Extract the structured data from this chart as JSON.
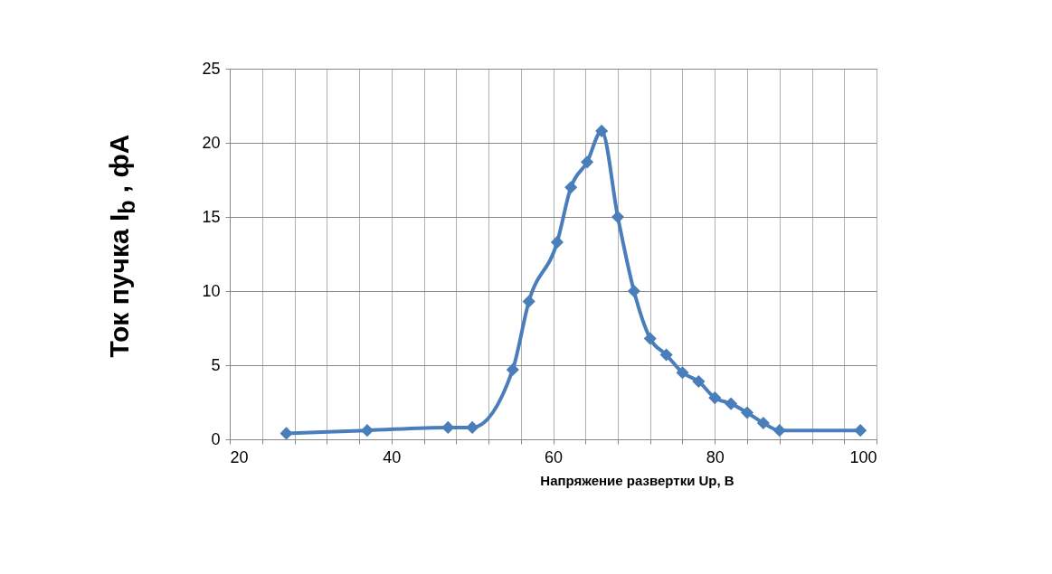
{
  "chart_data": {
    "type": "line",
    "xlabel": "Напряжение развертки  Up, В",
    "ylabel": "Ток пучка I$_{b}$  , фА",
    "x": [
      27,
      37,
      47,
      50,
      55,
      57,
      60.5,
      62.2,
      64.2,
      66,
      68,
      70,
      72,
      74,
      76,
      78,
      80,
      82,
      84,
      86,
      88,
      98
    ],
    "series": [
      {
        "color": "#4a7ebb",
        "values": [
          0.4,
          0.6,
          0.8,
          0.8,
          4.7,
          9.3,
          13.3,
          17,
          18.7,
          20.8,
          15,
          10,
          6.8,
          5.7,
          4.5,
          3.9,
          2.8,
          2.4,
          1.8,
          1.1,
          0.6,
          0.6
        ]
      }
    ],
    "xlim": [
      20,
      100
    ],
    "xticks": [
      20,
      {
        "value": 24,
        "label": null
      },
      {
        "value": 28,
        "label": null
      },
      {
        "value": 32,
        "label": null
      },
      {
        "value": 36,
        "label": null
      },
      40,
      {
        "value": 44,
        "label": null
      },
      {
        "value": 48,
        "label": null
      },
      {
        "value": 52,
        "label": null
      },
      {
        "value": 56,
        "label": null
      },
      60,
      {
        "value": 64,
        "label": null
      },
      {
        "value": 68,
        "label": null
      },
      {
        "value": 72,
        "label": null
      },
      {
        "value": 76,
        "label": null
      },
      80,
      {
        "value": 84,
        "label": null
      },
      {
        "value": 88,
        "label": null
      },
      {
        "value": 92,
        "label": null
      },
      {
        "value": 96,
        "label": null
      },
      100
    ],
    "ylim": [
      0,
      25
    ],
    "yticks": [
      0,
      5,
      10,
      15,
      20,
      25
    ],
    "grid": true,
    "marker": "diamond",
    "line_style": "solid"
  }
}
